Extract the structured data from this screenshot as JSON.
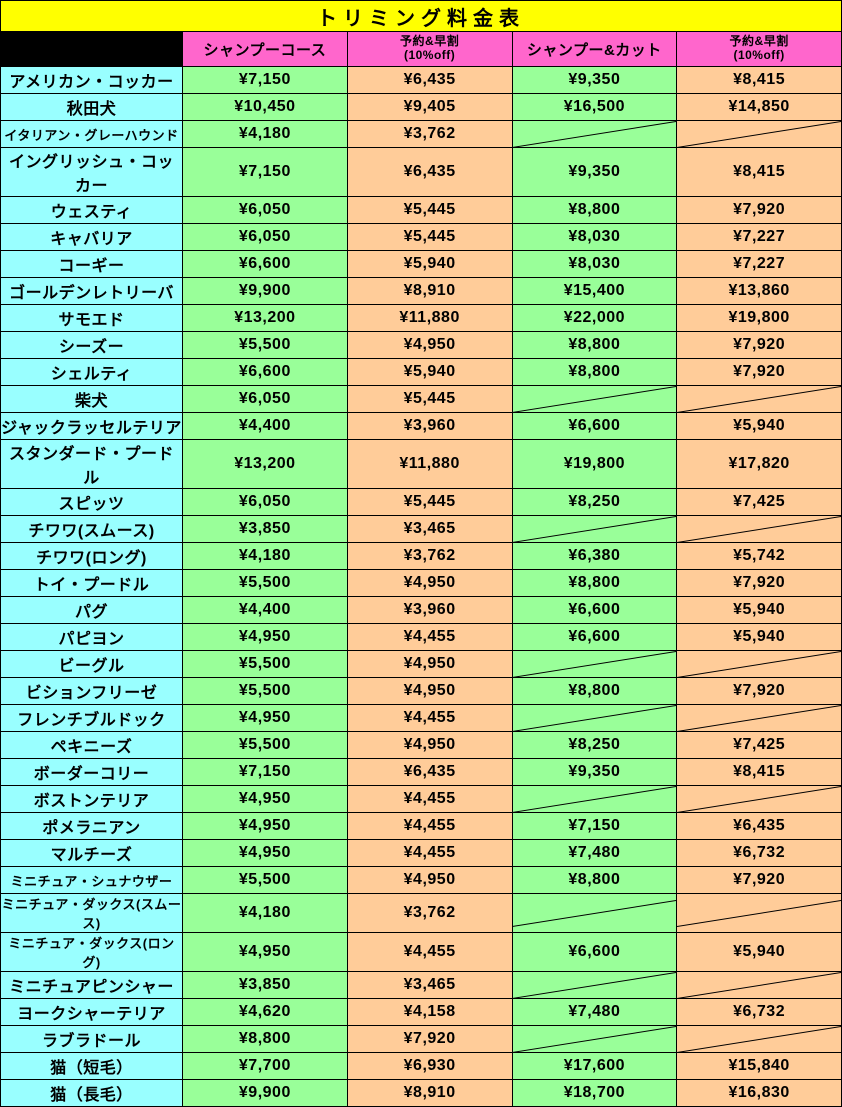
{
  "title": "トリミング料金表",
  "colors": {
    "title_bg": "#ffff00",
    "black_bg": "#000000",
    "header_pink": "#ff66cc",
    "breed_bg": "#99ffff",
    "green_bg": "#99ff99",
    "orange_bg": "#ffcc99"
  },
  "headers": {
    "shampoo": "シャンプーコース",
    "shampoo_off_l1": "予約&早割",
    "shampoo_off_l2": "(10%off)",
    "cut": "シャンプー&カット",
    "cut_off_l1": "予約&早割",
    "cut_off_l2": "(10%off)"
  },
  "rows": [
    {
      "breed": "アメリカン・コッカー",
      "p": [
        "¥7,150",
        "¥6,435",
        "¥9,350",
        "¥8,415"
      ]
    },
    {
      "breed": "秋田犬",
      "p": [
        "¥10,450",
        "¥9,405",
        "¥16,500",
        "¥14,850"
      ]
    },
    {
      "breed": "イタリアン・グレーハウンド",
      "small": true,
      "p": [
        "¥4,180",
        "¥3,762",
        "",
        ""
      ]
    },
    {
      "breed": "イングリッシュ・コッカー",
      "p": [
        "¥7,150",
        "¥6,435",
        "¥9,350",
        "¥8,415"
      ]
    },
    {
      "breed": "ウェスティ",
      "p": [
        "¥6,050",
        "¥5,445",
        "¥8,800",
        "¥7,920"
      ]
    },
    {
      "breed": "キャバリア",
      "p": [
        "¥6,050",
        "¥5,445",
        "¥8,030",
        "¥7,227"
      ]
    },
    {
      "breed": "コーギー",
      "p": [
        "¥6,600",
        "¥5,940",
        "¥8,030",
        "¥7,227"
      ]
    },
    {
      "breed": "ゴールデンレトリーバ",
      "p": [
        "¥9,900",
        "¥8,910",
        "¥15,400",
        "¥13,860"
      ]
    },
    {
      "breed": "サモエド",
      "p": [
        "¥13,200",
        "¥11,880",
        "¥22,000",
        "¥19,800"
      ]
    },
    {
      "breed": "シーズー",
      "p": [
        "¥5,500",
        "¥4,950",
        "¥8,800",
        "¥7,920"
      ]
    },
    {
      "breed": "シェルティ",
      "p": [
        "¥6,600",
        "¥5,940",
        "¥8,800",
        "¥7,920"
      ]
    },
    {
      "breed": "柴犬",
      "p": [
        "¥6,050",
        "¥5,445",
        "",
        ""
      ]
    },
    {
      "breed": "ジャックラッセルテリア",
      "p": [
        "¥4,400",
        "¥3,960",
        "¥6,600",
        "¥5,940"
      ]
    },
    {
      "breed": "スタンダード・プードル",
      "p": [
        "¥13,200",
        "¥11,880",
        "¥19,800",
        "¥17,820"
      ]
    },
    {
      "breed": "スピッツ",
      "p": [
        "¥6,050",
        "¥5,445",
        "¥8,250",
        "¥7,425"
      ]
    },
    {
      "breed": "チワワ(スムース)",
      "p": [
        "¥3,850",
        "¥3,465",
        "",
        ""
      ]
    },
    {
      "breed": "チワワ(ロング)",
      "p": [
        "¥4,180",
        "¥3,762",
        "¥6,380",
        "¥5,742"
      ]
    },
    {
      "breed": "トイ・プードル",
      "p": [
        "¥5,500",
        "¥4,950",
        "¥8,800",
        "¥7,920"
      ]
    },
    {
      "breed": "パグ",
      "p": [
        "¥4,400",
        "¥3,960",
        "¥6,600",
        "¥5,940"
      ]
    },
    {
      "breed": "パピヨン",
      "p": [
        "¥4,950",
        "¥4,455",
        "¥6,600",
        "¥5,940"
      ]
    },
    {
      "breed": "ビーグル",
      "p": [
        "¥5,500",
        "¥4,950",
        "",
        ""
      ]
    },
    {
      "breed": "ビションフリーゼ",
      "p": [
        "¥5,500",
        "¥4,950",
        "¥8,800",
        "¥7,920"
      ]
    },
    {
      "breed": "フレンチブルドック",
      "p": [
        "¥4,950",
        "¥4,455",
        "",
        ""
      ]
    },
    {
      "breed": "ペキニーズ",
      "p": [
        "¥5,500",
        "¥4,950",
        "¥8,250",
        "¥7,425"
      ]
    },
    {
      "breed": "ボーダーコリー",
      "p": [
        "¥7,150",
        "¥6,435",
        "¥9,350",
        "¥8,415"
      ]
    },
    {
      "breed": "ボストンテリア",
      "p": [
        "¥4,950",
        "¥4,455",
        "",
        ""
      ]
    },
    {
      "breed": "ポメラニアン",
      "p": [
        "¥4,950",
        "¥4,455",
        "¥7,150",
        "¥6,435"
      ]
    },
    {
      "breed": "マルチーズ",
      "p": [
        "¥4,950",
        "¥4,455",
        "¥7,480",
        "¥6,732"
      ]
    },
    {
      "breed": "ミニチュア・シュナウザー",
      "small": true,
      "p": [
        "¥5,500",
        "¥4,950",
        "¥8,800",
        "¥7,920"
      ]
    },
    {
      "breed": "ミニチュア・ダックス(スムース)",
      "small": true,
      "p": [
        "¥4,180",
        "¥3,762",
        "",
        ""
      ]
    },
    {
      "breed": "ミニチュア・ダックス(ロング)",
      "small": true,
      "p": [
        "¥4,950",
        "¥4,455",
        "¥6,600",
        "¥5,940"
      ]
    },
    {
      "breed": "ミニチュアピンシャー",
      "p": [
        "¥3,850",
        "¥3,465",
        "",
        ""
      ]
    },
    {
      "breed": "ヨークシャーテリア",
      "p": [
        "¥4,620",
        "¥4,158",
        "¥7,480",
        "¥6,732"
      ]
    },
    {
      "breed": "ラブラドール",
      "p": [
        "¥8,800",
        "¥7,920",
        "",
        ""
      ]
    },
    {
      "breed": "猫（短毛）",
      "p": [
        "¥7,700",
        "¥6,930",
        "¥17,600",
        "¥15,840"
      ]
    },
    {
      "breed": "猫（長毛）",
      "p": [
        "¥9,900",
        "¥8,910",
        "¥18,700",
        "¥16,830"
      ]
    }
  ]
}
